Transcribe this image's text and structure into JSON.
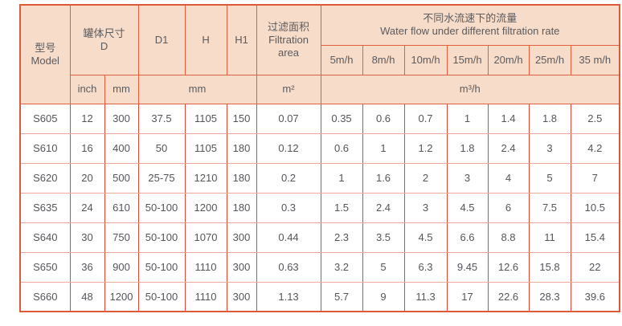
{
  "table": {
    "header": {
      "model_zh": "型号",
      "model_en": "Model",
      "tank_zh": "罐体尺寸",
      "tank_d": "D",
      "d1": "D1",
      "h": "H",
      "h1": "H1",
      "filtration_zh": "过滤面积",
      "filtration_en_line1": "Filtration",
      "filtration_en_line2": "area",
      "flow_zh": "不同水流速下的流量",
      "flow_en": "Water flow under different filtration rate",
      "rates": [
        "5m/h",
        "8m/h",
        "10m/h",
        "15m/h",
        "20m/h",
        "25m/h",
        "35 m/h"
      ],
      "unit_inch": "inch",
      "unit_mm": "mm",
      "unit_mm_dims": "mm",
      "unit_area": "m²",
      "unit_flow": "m³/h"
    },
    "rows": [
      {
        "model": "S605",
        "inch": "12",
        "mm": "300",
        "d1": "37.5",
        "h": "1105",
        "h1": "150",
        "area": "0.07",
        "flows": [
          "0.35",
          "0.6",
          "0.7",
          "1",
          "1.4",
          "1.8",
          "2.5"
        ]
      },
      {
        "model": "S610",
        "inch": "16",
        "mm": "400",
        "d1": "50",
        "h": "1105",
        "h1": "180",
        "area": "0.12",
        "flows": [
          "0.6",
          "1",
          "1.2",
          "1.8",
          "2.4",
          "3",
          "4.2"
        ]
      },
      {
        "model": "S620",
        "inch": "20",
        "mm": "500",
        "d1": "25-75",
        "h": "1210",
        "h1": "180",
        "area": "0.2",
        "flows": [
          "1",
          "1.6",
          "2",
          "3",
          "4",
          "5",
          "7"
        ]
      },
      {
        "model": "S635",
        "inch": "24",
        "mm": "610",
        "d1": "50-100",
        "h": "1200",
        "h1": "180",
        "area": "0.3",
        "flows": [
          "1.5",
          "2.4",
          "3",
          "4.5",
          "6",
          "7.5",
          "10.5"
        ]
      },
      {
        "model": "S640",
        "inch": "30",
        "mm": "750",
        "d1": "50-100",
        "h": "1070",
        "h1": "300",
        "area": "0.44",
        "flows": [
          "2.3",
          "3.5",
          "4.5",
          "6.6",
          "8.8",
          "11",
          "15.4"
        ]
      },
      {
        "model": "S650",
        "inch": "36",
        "mm": "900",
        "d1": "50-100",
        "h": "1110",
        "h1": "300",
        "area": "0.63",
        "flows": [
          "3.2",
          "5",
          "6.3",
          "9.45",
          "12.6",
          "15.8",
          "22"
        ]
      },
      {
        "model": "S660",
        "inch": "48",
        "mm": "1200",
        "d1": "50-100",
        "h": "1110",
        "h1": "300",
        "area": "1.13",
        "flows": [
          "5.7",
          "9",
          "11.3",
          "17",
          "22.6",
          "28.3",
          "39.6"
        ]
      }
    ],
    "colors": {
      "header_bg": "#f8dcca",
      "grid_orange": "#de603e",
      "grid_red": "#d24c3c",
      "grid_pink": "#f0a79c",
      "outer_border": "#dc5a38",
      "text": "#56575b"
    }
  }
}
